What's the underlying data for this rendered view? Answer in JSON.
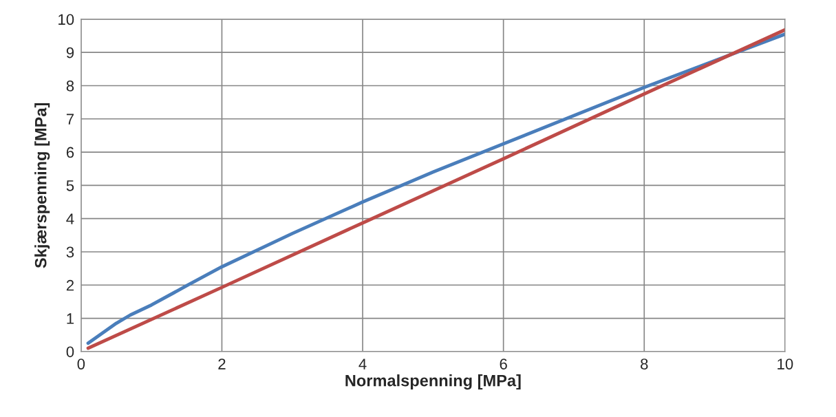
{
  "chart_data": {
    "type": "line",
    "xlabel": "Normalspenning [MPa]",
    "ylabel": "Skjærspenning [MPa]",
    "xlim": [
      0,
      10
    ],
    "xticks": [
      0,
      2,
      4,
      6,
      8,
      10
    ],
    "ylim": [
      0,
      10
    ],
    "yticks": [
      0,
      1,
      2,
      3,
      4,
      5,
      6,
      7,
      8,
      9,
      10
    ],
    "grid": true,
    "marker": "none",
    "line_style": "solid",
    "series": [
      {
        "color": "#4a7ebb",
        "x": [
          0.1,
          0.3,
          0.5,
          0.7,
          1,
          1.5,
          2,
          3,
          4,
          5,
          6,
          7,
          8,
          9,
          10
        ],
        "values": [
          0.25,
          0.55,
          0.85,
          1.1,
          1.4,
          1.98,
          2.55,
          3.55,
          4.5,
          5.4,
          6.25,
          7.1,
          7.95,
          8.75,
          9.55
        ]
      },
      {
        "color": "#be4b48",
        "x": [
          0.1,
          2,
          4,
          6,
          8,
          10
        ],
        "values": [
          0.1,
          1.93,
          3.87,
          5.8,
          7.75,
          9.68
        ]
      }
    ]
  }
}
